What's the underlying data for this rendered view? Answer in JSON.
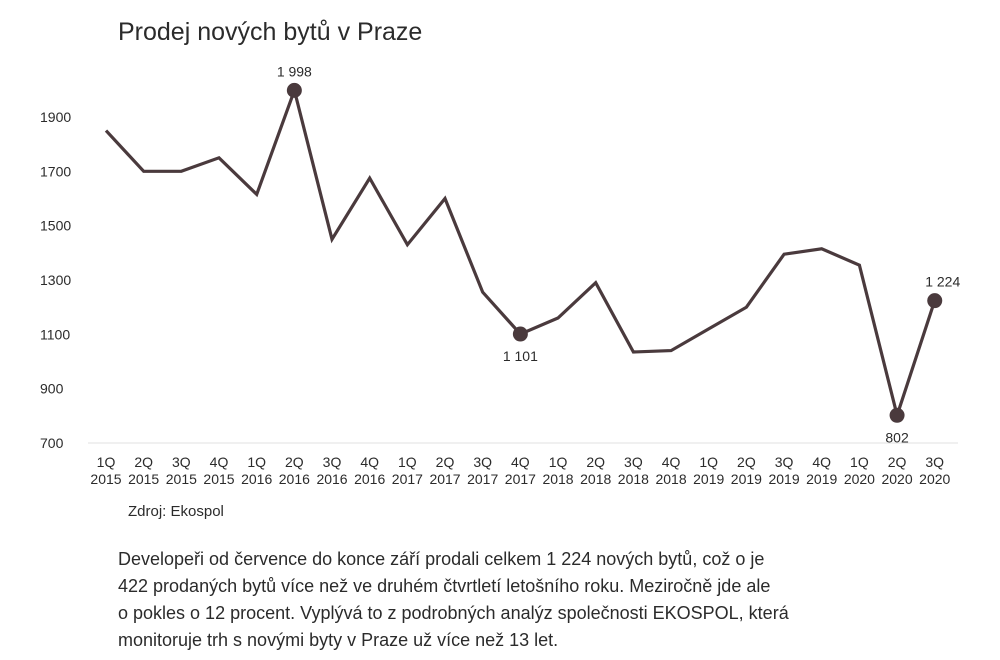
{
  "title": "Prodej nových bytů v Praze",
  "source": "Zdroj: Ekospol",
  "description_lines": [
    "Developeři od července do konce září prodali celkem 1 224 nových bytů, což o je",
    "422 prodaných bytů více než ve druhém čtvrtletí letošního roku. Meziročně jde ale",
    "o pokles o 12 procent. Vyplývá to z podrobných analýz společnosti EKOSPOL, která",
    "monitoruje trh s novými byty v Praze už více než 13 let."
  ],
  "chart_data": {
    "type": "line",
    "title": "Prodej nových bytů v Praze",
    "categories": [
      [
        "1Q",
        "2015"
      ],
      [
        "2Q",
        "2015"
      ],
      [
        "3Q",
        "2015"
      ],
      [
        "4Q",
        "2015"
      ],
      [
        "1Q",
        "2016"
      ],
      [
        "2Q",
        "2016"
      ],
      [
        "3Q",
        "2016"
      ],
      [
        "4Q",
        "2016"
      ],
      [
        "1Q",
        "2017"
      ],
      [
        "2Q",
        "2017"
      ],
      [
        "3Q",
        "2017"
      ],
      [
        "4Q",
        "2017"
      ],
      [
        "1Q",
        "2018"
      ],
      [
        "2Q",
        "2018"
      ],
      [
        "3Q",
        "2018"
      ],
      [
        "4Q",
        "2018"
      ],
      [
        "1Q",
        "2019"
      ],
      [
        "2Q",
        "2019"
      ],
      [
        "3Q",
        "2019"
      ],
      [
        "4Q",
        "2019"
      ],
      [
        "1Q",
        "2020"
      ],
      [
        "2Q",
        "2020"
      ],
      [
        "3Q",
        "2020"
      ]
    ],
    "values": [
      1850,
      1700,
      1700,
      1750,
      1615,
      1998,
      1450,
      1675,
      1430,
      1600,
      1255,
      1101,
      1160,
      1290,
      1035,
      1040,
      1120,
      1200,
      1395,
      1415,
      1355,
      802,
      1224
    ],
    "ylim": [
      700,
      2000
    ],
    "yticks": [
      700,
      900,
      1100,
      1300,
      1500,
      1700,
      1900
    ],
    "highlighted_points": [
      {
        "index": 5,
        "label": "1 998"
      },
      {
        "index": 11,
        "label": "1 101"
      },
      {
        "index": 21,
        "label": "802"
      },
      {
        "index": 22,
        "label": "1 224"
      }
    ],
    "color": "#4a3a3d",
    "grid": false
  }
}
